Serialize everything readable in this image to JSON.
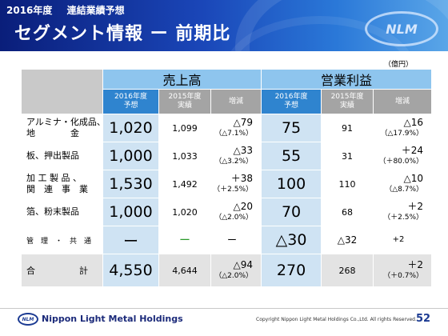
{
  "header": {
    "year": "2016年度",
    "subtitle": "連結業績予想",
    "title": "セグメント情報 ー 前期比",
    "logo_text": "NLM"
  },
  "unit": "（億円）",
  "table": {
    "group_sales": "売上高",
    "group_op": "営業利益",
    "col_forecast": [
      "2016年度",
      "予想"
    ],
    "col_actual": [
      "2015年度",
      "実績"
    ],
    "col_change": "増減",
    "rows": [
      {
        "label": [
          "アルミナ・化成品、",
          "地　　　　金"
        ],
        "s_fc": "1,020",
        "s_act": "1,099",
        "s_chg": "△79",
        "s_pct": "（△7.1%）",
        "o_fc": "75",
        "o_act": "91",
        "o_chg": "△16",
        "o_pct": "（△17.9%）"
      },
      {
        "label": [
          "板、押出製品"
        ],
        "s_fc": "1,000",
        "s_act": "1,033",
        "s_chg": "△33",
        "s_pct": "（△3.2%）",
        "o_fc": "55",
        "o_act": "31",
        "o_chg": "＋24",
        "o_pct": "（＋80.0%）"
      },
      {
        "label": [
          "加 工 製 品 、",
          "関　連　事　業"
        ],
        "s_fc": "1,530",
        "s_act": "1,492",
        "s_chg": "＋38",
        "s_pct": "（＋2.5%）",
        "o_fc": "100",
        "o_act": "110",
        "o_chg": "△10",
        "o_pct": "（△8.7%）"
      },
      {
        "label": [
          "箔、粉末製品"
        ],
        "s_fc": "1,000",
        "s_act": "1,020",
        "s_chg": "△20",
        "s_pct": "（△2.0%）",
        "o_fc": "70",
        "o_act": "68",
        "o_chg": "＋2",
        "o_pct": "（＋2.5%）"
      }
    ],
    "mgmt": {
      "label": "管　理　・　共　通",
      "s_fc": "ー",
      "s_act": "ー",
      "s_chg": "ー",
      "o_fc": "△30",
      "o_act": "△32",
      "o_chg": "+2"
    },
    "total": {
      "label": "合　　　　　計",
      "s_fc": "4,550",
      "s_act": "4,644",
      "s_chg": "△94",
      "s_pct": "（△2.0%）",
      "o_fc": "270",
      "o_act": "268",
      "o_chg": "＋2",
      "o_pct": "（＋0.7%）"
    }
  },
  "footer": {
    "logo_text": "NLM",
    "company": "Nippon Light Metal Holdings",
    "copyright": "Copyright Nippon Light Metal Holdings Co.,Ltd. All rights Reserved.",
    "page": "52"
  }
}
